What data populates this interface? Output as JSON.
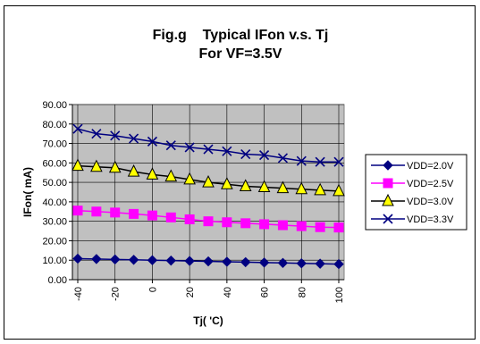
{
  "chart_data": {
    "type": "line",
    "title": "Fig.g    Typical IFon v.s. Tj",
    "subtitle": "For VF=3.5V",
    "xlabel": "Tj( 'C)",
    "ylabel": "IFon( mA)",
    "x": [
      -40,
      -30,
      -20,
      -10,
      0,
      10,
      20,
      30,
      40,
      50,
      60,
      70,
      80,
      90,
      100
    ],
    "x_tick_labels": [
      "-40",
      "-20",
      "0",
      "20",
      "40",
      "60",
      "80",
      "100"
    ],
    "y_tick_labels": [
      "0.00",
      "10.00",
      "20.00",
      "30.00",
      "40.00",
      "50.00",
      "60.00",
      "70.00",
      "80.00",
      "90.00"
    ],
    "ylim": [
      0,
      90
    ],
    "grid": true,
    "legend_position": "right",
    "series": [
      {
        "name": "VDD=2.0V",
        "color": "#000080",
        "marker": "diamond",
        "values": [
          10.8,
          10.6,
          10.4,
          10.2,
          10.0,
          9.8,
          9.6,
          9.4,
          9.2,
          9.0,
          8.8,
          8.6,
          8.4,
          8.2,
          8.0
        ]
      },
      {
        "name": "VDD=2.5V",
        "color": "#FF00FF",
        "marker": "square",
        "values": [
          35.5,
          35.0,
          34.5,
          33.8,
          33.0,
          32.0,
          31.0,
          30.0,
          29.5,
          29.0,
          28.5,
          28.0,
          27.5,
          27.0,
          26.8
        ]
      },
      {
        "name": "VDD=3.0V",
        "color": "#FFFF00",
        "marker": "triangle",
        "values": [
          58.5,
          58.0,
          57.5,
          55.5,
          54.0,
          53.0,
          51.5,
          50.0,
          49.0,
          48.0,
          47.5,
          47.0,
          46.5,
          46.0,
          45.5
        ]
      },
      {
        "name": "VDD=3.3V",
        "color": "#000080",
        "marker": "x",
        "values": [
          77.5,
          75.0,
          74.0,
          72.5,
          71.0,
          69.0,
          68.0,
          67.0,
          66.0,
          64.5,
          64.0,
          62.5,
          61.0,
          60.5,
          60.5
        ]
      }
    ]
  }
}
